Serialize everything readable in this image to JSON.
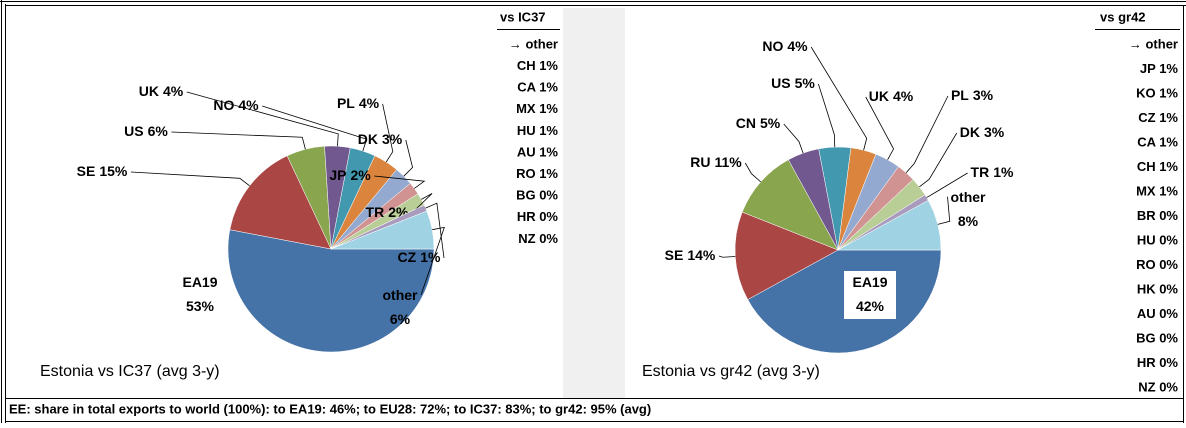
{
  "chart_data": [
    {
      "type": "pie",
      "caption": "Estonia vs IC37 (avg 3-y)",
      "categories": [
        "EA19",
        "SE",
        "US",
        "UK",
        "NO",
        "PL",
        "DK",
        "JP",
        "TR",
        "CZ",
        "other"
      ],
      "values": [
        53,
        15,
        6,
        4,
        4,
        4,
        3,
        2,
        2,
        1,
        6
      ],
      "value_labels": [
        "53%",
        "15%",
        "6%",
        "4%",
        "4%",
        "4%",
        "3%",
        "2%",
        "2%",
        "1%",
        "6%"
      ],
      "colors": [
        "#4572a7",
        "#aa4643",
        "#89a54e",
        "#71588f",
        "#4198af",
        "#db843d",
        "#93a9cf",
        "#d19392",
        "#b9cd96",
        "#a99bbd",
        "#9fd3e3"
      ],
      "other_table": {
        "header": "vs IC37",
        "first": "→ other",
        "rows": [
          "CH 1%",
          "CA 1%",
          "MX 1%",
          "HU 1%",
          "AU 1%",
          "RO 1%",
          "BG 0%",
          "HR 0%",
          "NZ 0%"
        ]
      }
    },
    {
      "type": "pie",
      "caption": "Estonia vs gr42 (avg 3-y)",
      "categories": [
        "EA19",
        "SE",
        "RU",
        "CN",
        "US",
        "NO",
        "UK",
        "PL",
        "DK",
        "TR",
        "other"
      ],
      "values": [
        42,
        14,
        11,
        5,
        5,
        4,
        4,
        3,
        3,
        1,
        8
      ],
      "value_labels": [
        "42%",
        "14%",
        "11%",
        "5%",
        "5%",
        "4%",
        "4%",
        "3%",
        "3%",
        "1%",
        "8%"
      ],
      "colors": [
        "#4572a7",
        "#aa4643",
        "#89a54e",
        "#71588f",
        "#4198af",
        "#db843d",
        "#93a9cf",
        "#d19392",
        "#b9cd96",
        "#a99bbd",
        "#9fd3e3"
      ],
      "other_table": {
        "header": "vs gr42",
        "first": "→ other",
        "rows": [
          "JP 1%",
          "KO 1%",
          "CZ 1%",
          "CA 1%",
          "CH 1%",
          "MX 1%",
          "BR 0%",
          "HU 0%",
          "RO 0%",
          "HK 0%",
          "AU 0%",
          "BG 0%",
          "HR 0%",
          "NZ 0%"
        ]
      }
    }
  ],
  "footer": "EE: share in total exports to world (100%): to EA19: 46%; to EU28: 72%; to IC37: 83%; to gr42: 95% (avg)"
}
